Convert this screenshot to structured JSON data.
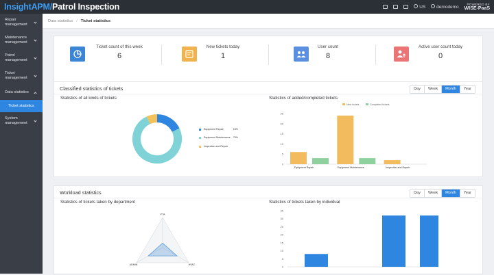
{
  "header": {
    "brand_part1": "InsightAPM/",
    "brand_part2": "Patrol Inspection",
    "language": "US",
    "user": "demodemo",
    "powered_line1": "POWERED BY",
    "powered_line2": "WISE-PaaS"
  },
  "sidebar": {
    "items": [
      {
        "label": "Repair management"
      },
      {
        "label": "Maintenance management"
      },
      {
        "label": "Patrol management"
      },
      {
        "label": "Ticket management"
      },
      {
        "label": "Data statistics"
      },
      {
        "label": "System management"
      }
    ],
    "active_sub": "Ticket statistics"
  },
  "breadcrumb": {
    "parent": "Data statistics",
    "separator": "/",
    "current": "Ticket statistics"
  },
  "stats": [
    {
      "label": "Ticket count of this week",
      "value": "6",
      "color": "#3a86d4",
      "icon": "pie-chart-icon"
    },
    {
      "label": "New tickets today",
      "value": "1",
      "color": "#f0b34d",
      "icon": "new-ticket-icon"
    },
    {
      "label": "User count",
      "value": "8",
      "color": "#5b8fe0",
      "icon": "users-icon"
    },
    {
      "label": "Active user count today",
      "value": "0",
      "color": "#eb7474",
      "icon": "active-user-icon"
    }
  ],
  "classified": {
    "title": "Classified statistics of tickets",
    "periods": [
      "Day",
      "Week",
      "Month",
      "Year"
    ],
    "active_period": "Month",
    "left_title": "Statistics of all kinds of tickets",
    "right_title": "Statistics of added/completed tickets"
  },
  "workload": {
    "title": "Workload statistics",
    "periods": [
      "Day",
      "Week",
      "Month",
      "Year"
    ],
    "active_period": "Month",
    "left_title": "Statistics of tickets taken by department",
    "right_title": "Statistics of tickets taken by individual"
  },
  "chart_data": [
    {
      "type": "pie",
      "categories": [
        "Equipment Repair",
        "Equipment Maintenance",
        "Inspection and Repair"
      ],
      "values": [
        18,
        75,
        7
      ],
      "value_labels": [
        "18%",
        "75%",
        ""
      ],
      "colors": [
        "#2e86e0",
        "#7fd3d6",
        "#f2c15a"
      ]
    },
    {
      "type": "bar",
      "categories": [
        "Equipment Repair",
        "Equipment Maintenance",
        "Inspection and Repair"
      ],
      "series": [
        {
          "name": "New tickets",
          "values": [
            6,
            24,
            2
          ],
          "color": "#f2bb5e"
        },
        {
          "name": "Completed tickets",
          "values": [
            3,
            3,
            0
          ],
          "color": "#8fd19e"
        }
      ],
      "yticks": [
        "0",
        "5",
        "10",
        "15",
        "20",
        "25"
      ],
      "ylim": [
        0,
        25
      ]
    },
    {
      "type": "radar",
      "categories": [
        "PTA",
        "HVAC",
        "ADMIN"
      ],
      "values": [
        0.15,
        0.55,
        0.55
      ],
      "max": 1,
      "colors": [
        "#5b9bd5"
      ]
    },
    {
      "type": "bar",
      "categories": [
        "",
        "",
        ""
      ],
      "values": [
        8,
        32,
        32
      ],
      "ylim": [
        0,
        35
      ],
      "yticks": [
        "0",
        "5",
        "10",
        "15",
        "20",
        "25",
        "30",
        "35"
      ],
      "color": "#2e86e0"
    }
  ]
}
